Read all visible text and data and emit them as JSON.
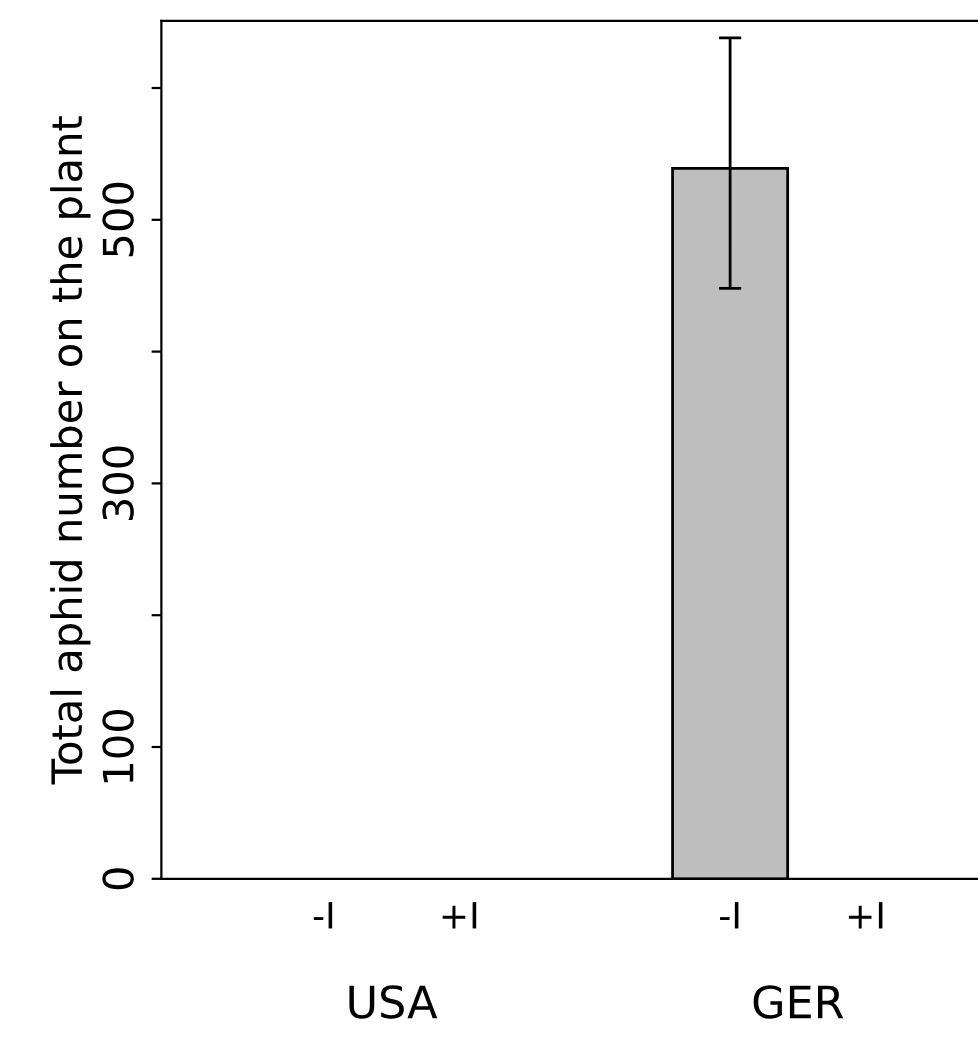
{
  "chart_data": {
    "type": "bar",
    "ylabel": "Total aphid number on the plant",
    "categories": [
      "-I",
      "+I",
      "-I",
      "+I"
    ],
    "values": [
      null,
      null,
      539,
      null
    ],
    "errors": [
      null,
      null,
      [
        448,
        638
      ],
      null
    ],
    "color": "#bebebe",
    "ylim": [
      0,
      651
    ],
    "yticks": [
      0,
      100,
      {
        "value": 200,
        "label": null
      },
      300,
      {
        "value": 400,
        "label": null
      },
      500,
      {
        "value": 600,
        "label": null
      }
    ],
    "annotations": [
      "USA",
      "GER"
    ],
    "grid": false
  }
}
